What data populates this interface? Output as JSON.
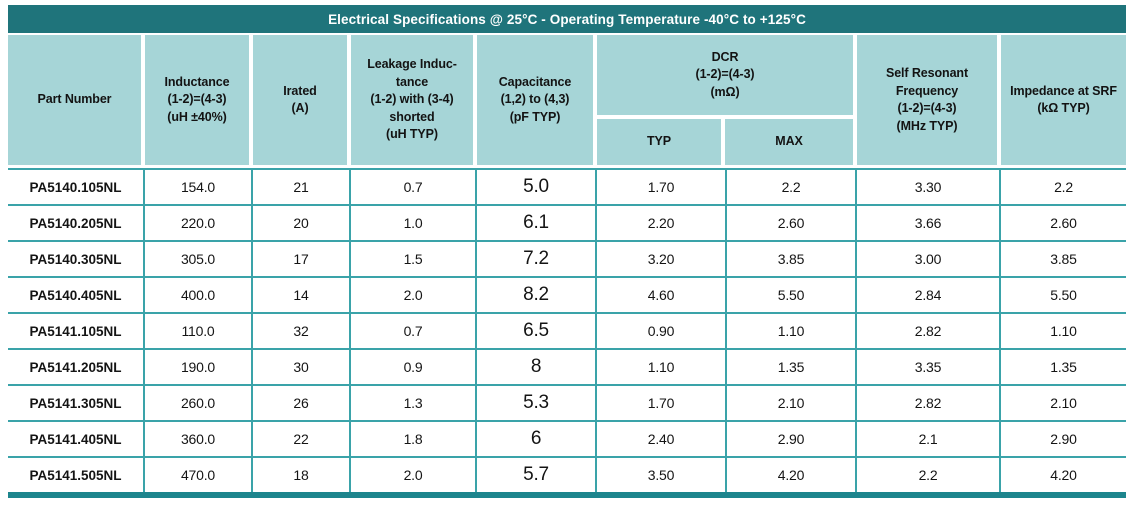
{
  "title": "Electrical Specifications @ 25°C - Operating Temperature -40°C to +125°C",
  "colors": {
    "title_bg": "#1f747b",
    "header_bg": "#a6d5d7",
    "grid_line": "#3aa3a9",
    "bottom_bar": "#1d858d",
    "title_text": "#ffffff",
    "body_text": "#141414"
  },
  "table": {
    "headers": {
      "part_number": "Part Number",
      "inductance": "Inductance\n(1-2)=(4-3)\n(uH ±40%)",
      "irated": "Irated\n(A)",
      "leakage": "Leakage Induc-\ntance\n(1-2) with (3-4)\nshorted\n(uH TYP)",
      "capacitance": "Capacitance\n(1,2) to (4,3)\n(pF TYP)",
      "dcr_group": "DCR\n(1-2)=(4-3)\n(mΩ)",
      "dcr_typ": "TYP",
      "dcr_max": "MAX",
      "srf": "Self Resonant\nFrequency\n(1-2)=(4-3)\n(MHz TYP)",
      "impedance": "Impedance at SRF\n(kΩ TYP)"
    },
    "rows": [
      [
        "PA5140.105NL",
        "154.0",
        "21",
        "0.7",
        "5.0",
        "1.70",
        "2.2",
        "3.30",
        "2.2"
      ],
      [
        "PA5140.205NL",
        "220.0",
        "20",
        "1.0",
        "6.1",
        "2.20",
        "2.60",
        "3.66",
        "2.60"
      ],
      [
        "PA5140.305NL",
        "305.0",
        "17",
        "1.5",
        "7.2",
        "3.20",
        "3.85",
        "3.00",
        "3.85"
      ],
      [
        "PA5140.405NL",
        "400.0",
        "14",
        "2.0",
        "8.2",
        "4.60",
        "5.50",
        "2.84",
        "5.50"
      ],
      [
        "PA5141.105NL",
        "110.0",
        "32",
        "0.7",
        "6.5",
        "0.90",
        "1.10",
        "2.82",
        "1.10"
      ],
      [
        "PA5141.205NL",
        "190.0",
        "30",
        "0.9",
        "8",
        "1.10",
        "1.35",
        "3.35",
        "1.35"
      ],
      [
        "PA5141.305NL",
        "260.0",
        "26",
        "1.3",
        "5.3",
        "1.70",
        "2.10",
        "2.82",
        "2.10"
      ],
      [
        "PA5141.405NL",
        "360.0",
        "22",
        "1.8",
        "6",
        "2.40",
        "2.90",
        "2.1",
        "2.90"
      ],
      [
        "PA5141.505NL",
        "470.0",
        "18",
        "2.0",
        "5.7",
        "3.50",
        "4.20",
        "2.2",
        "4.20"
      ]
    ]
  }
}
